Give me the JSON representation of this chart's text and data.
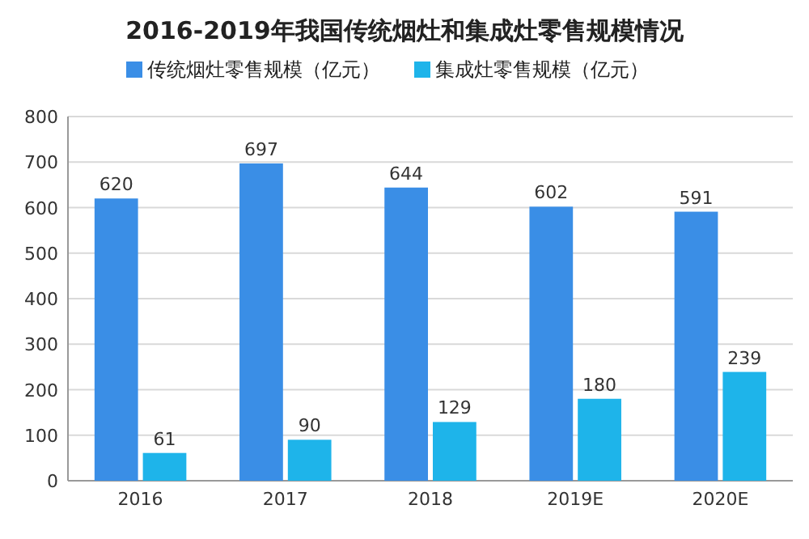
{
  "chart_data": {
    "type": "bar",
    "title": "2016-2019年我国传统烟灶和集成灶零售规模情况",
    "categories": [
      "2016",
      "2017",
      "2018",
      "2019E",
      "2020E"
    ],
    "series": [
      {
        "name": "传统烟灶零售规模（亿元）",
        "color": "#3a8ee6",
        "values": [
          620,
          697,
          644,
          602,
          591
        ]
      },
      {
        "name": "集成灶零售规模（亿元）",
        "color": "#1eb4ea",
        "values": [
          61,
          90,
          129,
          180,
          239
        ]
      }
    ],
    "ylim": [
      0,
      800
    ],
    "yticks": [
      0,
      100,
      200,
      300,
      400,
      500,
      600,
      700,
      800
    ],
    "grid": "y",
    "legend": "top",
    "data_labels": true
  }
}
